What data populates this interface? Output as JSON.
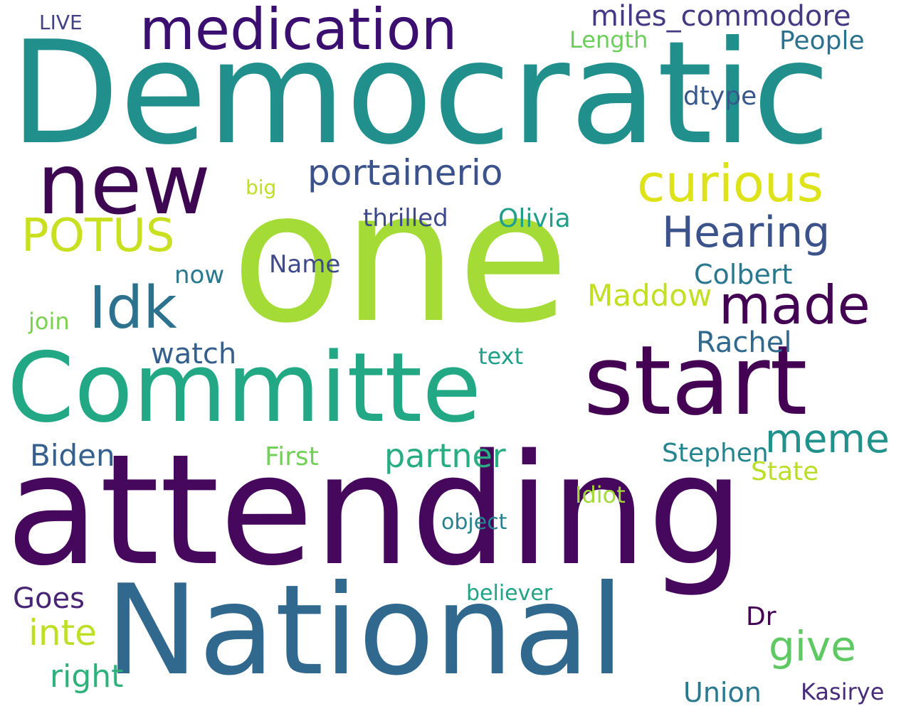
{
  "words": [
    {
      "text": "Democratic",
      "color": "#21908c"
    },
    {
      "text": "one",
      "color": "#a5db36"
    },
    {
      "text": "attending",
      "color": "#46085c"
    },
    {
      "text": "National",
      "color": "#31688e"
    },
    {
      "text": "Committe",
      "color": "#22a884"
    },
    {
      "text": "start",
      "color": "#440154"
    },
    {
      "text": "new",
      "color": "#3e0751"
    },
    {
      "text": "medication",
      "color": "#3b0f70"
    },
    {
      "text": "curious",
      "color": "#dde318"
    },
    {
      "text": "portainerio",
      "color": "#3b528b"
    },
    {
      "text": "Idk",
      "color": "#2c728e"
    },
    {
      "text": "made",
      "color": "#440154"
    },
    {
      "text": "Hearing",
      "color": "#3b528b"
    },
    {
      "text": "People",
      "color": "#2c728e"
    },
    {
      "text": "miles_commodore",
      "color": "#443983"
    },
    {
      "text": "POTUS",
      "color": "#c8e020"
    },
    {
      "text": "meme",
      "color": "#21918c"
    },
    {
      "text": "partner",
      "color": "#27ad81"
    },
    {
      "text": "Rachel",
      "color": "#31688e"
    },
    {
      "text": "watch",
      "color": "#35608d"
    },
    {
      "text": "Biden",
      "color": "#355f8d"
    },
    {
      "text": "give",
      "color": "#5ec962"
    },
    {
      "text": "Colbert",
      "color": "#2a788e"
    },
    {
      "text": "Maddow",
      "color": "#c2df23"
    },
    {
      "text": "Olivia",
      "color": "#1f9e89"
    },
    {
      "text": "Stephen",
      "color": "#25858e"
    },
    {
      "text": "thrilled",
      "color": "#3e4989"
    },
    {
      "text": "inte",
      "color": "#bddf26"
    },
    {
      "text": "right",
      "color": "#2db27d"
    },
    {
      "text": "Goes",
      "color": "#482475"
    },
    {
      "text": "Union",
      "color": "#29798e"
    },
    {
      "text": "First",
      "color": "#73d056"
    },
    {
      "text": "State",
      "color": "#bade28"
    },
    {
      "text": "Name",
      "color": "#3e4a89"
    },
    {
      "text": "Kasirye",
      "color": "#472c7a"
    },
    {
      "text": "join",
      "color": "#7ad151"
    },
    {
      "text": "Idiot",
      "color": "#a2da37"
    },
    {
      "text": "dtype",
      "color": "#38588c"
    },
    {
      "text": "Length",
      "color": "#6ccd5a"
    },
    {
      "text": "believer",
      "color": "#20a486"
    },
    {
      "text": "text",
      "color": "#1fa088"
    },
    {
      "text": "object",
      "color": "#26828e"
    },
    {
      "text": "big",
      "color": "#bddf26"
    },
    {
      "text": "LIVE",
      "color": "#424086"
    },
    {
      "text": "now",
      "color": "#2a788e"
    },
    {
      "text": "Dr",
      "color": "#440154"
    }
  ]
}
